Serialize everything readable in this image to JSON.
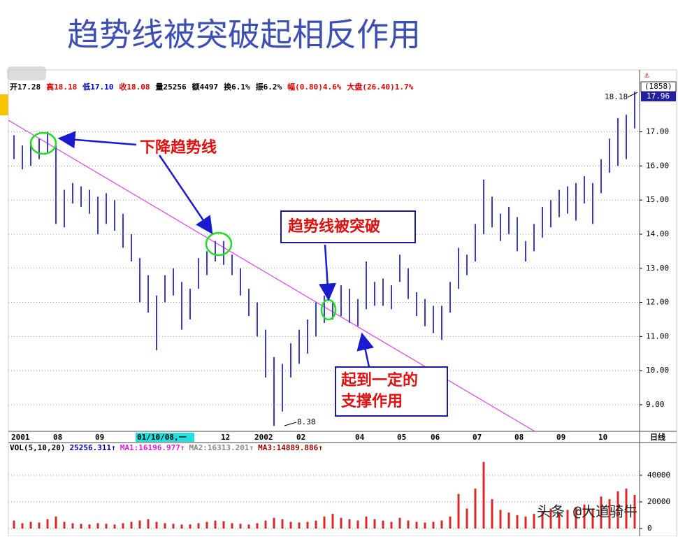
{
  "title": "趋势线被突破起相反作用",
  "info": [
    "开17.28",
    "高18.18",
    "低17.10",
    "收18.08",
    "量25256",
    "额4497",
    "换6.1%",
    "振6.2%",
    "幅(0.80)4.6%",
    "大盘(26.40)1.7%"
  ],
  "chart_data": {
    "type": "hilo",
    "categories": [
      "2001",
      null,
      null,
      null,
      null,
      "08",
      null,
      null,
      null,
      null,
      "09",
      null,
      null,
      null,
      null,
      "01/10/08,一",
      null,
      null,
      null,
      null,
      null,
      null,
      null,
      null,
      null,
      "12",
      null,
      null,
      null,
      "2002",
      null,
      null,
      null,
      null,
      "02",
      null,
      null,
      null,
      null,
      null,
      null,
      "04",
      null,
      null,
      null,
      null,
      "05",
      null,
      null,
      null,
      "06",
      null,
      null,
      null,
      null,
      "07",
      null,
      null,
      null,
      null,
      "08",
      null,
      null,
      null,
      null,
      "09",
      null,
      null,
      null,
      null,
      "10",
      null,
      null,
      null,
      null
    ],
    "high": [
      16.9,
      16.6,
      16.7,
      16.8,
      17.0,
      16.7,
      15.3,
      15.5,
      15.4,
      15.3,
      15.1,
      15.2,
      15.0,
      14.6,
      14.0,
      13.3,
      12.8,
      12.2,
      12.8,
      13.0,
      12.6,
      12.4,
      13.3,
      13.5,
      13.8,
      13.8,
      13.4,
      13.0,
      12.4,
      12.0,
      11.2,
      10.4,
      10.2,
      10.8,
      11.2,
      11.5,
      12.0,
      12.2,
      12.0,
      12.5,
      12.4,
      12.1,
      13.2,
      12.6,
      12.7,
      12.5,
      13.4,
      13.0,
      12.3,
      12.1,
      11.9,
      11.9,
      12.6,
      13.6,
      13.4,
      14.3,
      15.6,
      15.1,
      14.6,
      14.8,
      14.5,
      13.8,
      14.3,
      14.8,
      15.0,
      15.3,
      15.4,
      15.5,
      15.7,
      15.5,
      16.2,
      16.8,
      17.4,
      17.5,
      18.18
    ],
    "low": [
      16.2,
      15.9,
      16.0,
      16.2,
      16.4,
      14.3,
      14.2,
      14.9,
      14.8,
      14.6,
      14.0,
      14.3,
      14.1,
      13.6,
      13.2,
      12.0,
      11.7,
      10.6,
      12.0,
      12.2,
      11.2,
      11.5,
      12.4,
      12.8,
      13.2,
      13.1,
      12.8,
      12.2,
      11.6,
      11.0,
      9.8,
      8.38,
      8.8,
      9.8,
      10.2,
      10.5,
      11.0,
      11.4,
      11.5,
      11.6,
      11.4,
      11.3,
      11.8,
      11.9,
      11.9,
      11.8,
      12.6,
      12.1,
      11.6,
      11.3,
      11.1,
      10.9,
      11.7,
      12.4,
      12.8,
      13.2,
      14.0,
      14.2,
      13.8,
      14.0,
      13.5,
      13.2,
      13.5,
      13.9,
      14.2,
      14.5,
      14.6,
      14.4,
      14.9,
      14.3,
      15.2,
      15.8,
      16.0,
      16.2,
      17.1
    ],
    "color": "#3b3bd6",
    "ylim": [
      8.2,
      18.2
    ],
    "yticks": [
      {
        "value": 9,
        "label": "9.00"
      },
      {
        "value": 10,
        "label": "10.00"
      },
      {
        "value": 11,
        "label": "11.00"
      },
      {
        "value": 12,
        "label": "12.00"
      },
      {
        "value": 13,
        "label": "13.00"
      },
      {
        "value": 14,
        "label": "14.00"
      },
      {
        "value": 15,
        "label": "15.00"
      },
      {
        "value": 16,
        "label": "16.00"
      },
      {
        "value": 17,
        "label": "17.00"
      }
    ],
    "grid": true,
    "labels": {
      "low": "8.38",
      "high": "18.18",
      "code": "(1858)",
      "last": "17.96",
      "period": "日线"
    },
    "callouts": [
      "下降趋势线",
      "趋势线被突破",
      "起到一定的",
      "支撑作用"
    ],
    "volume": {
      "type": "bar",
      "legend": [
        "VOL(5,10,20)",
        "25256.311↑",
        "MA1:16196.977↑",
        "MA2:16313.201↑",
        "MA3:14889.886↑"
      ],
      "values": [
        6000,
        4000,
        5000,
        4500,
        7000,
        9000,
        5000,
        4000,
        3500,
        3000,
        4000,
        3500,
        3000,
        4000,
        5000,
        6000,
        7000,
        5000,
        4000,
        3500,
        3000,
        3000,
        4000,
        5000,
        6000,
        5500,
        4000,
        3500,
        3000,
        4000,
        6000,
        8000,
        7000,
        5000,
        4500,
        5000,
        6000,
        9000,
        11000,
        8000,
        7000,
        6000,
        9000,
        7000,
        6000,
        5000,
        8000,
        6000,
        5000,
        4500,
        5000,
        6000,
        9000,
        26000,
        15000,
        30000,
        50000,
        22000,
        14000,
        12000,
        10000,
        9000,
        11000,
        13000,
        15000,
        12000,
        14000,
        16000,
        18000,
        15000,
        24000,
        22000,
        28000,
        30000,
        25256
      ],
      "color": "#d42a2a",
      "ylim": [
        0,
        52000
      ],
      "yticks": [
        0,
        20000,
        40000
      ]
    }
  },
  "watermark": "头条 @大道骑牛"
}
